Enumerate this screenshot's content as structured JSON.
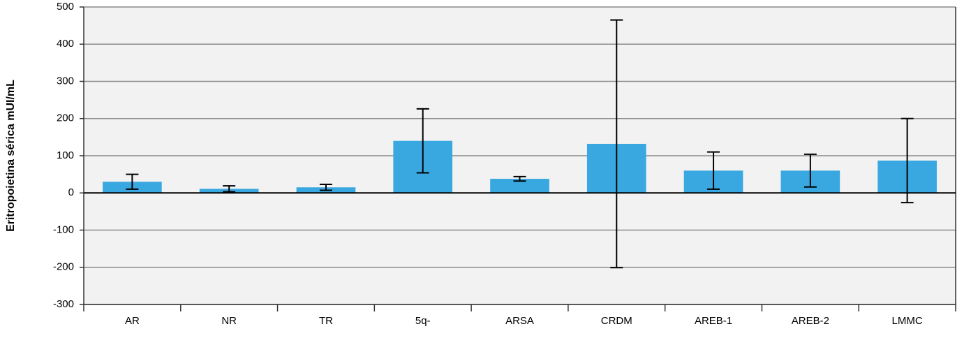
{
  "chart_data": {
    "type": "bar",
    "y_label": "Eritropoietina sérica mUI/mL",
    "categories": [
      "AR",
      "NR",
      "TR",
      "5q-",
      "ARSA",
      "CRDM",
      "AREB-1",
      "AREB-2",
      "LMMC"
    ],
    "values": [
      30,
      11,
      15,
      140,
      38,
      132,
      60,
      60,
      87
    ],
    "errors": [
      20,
      8,
      8,
      86,
      6,
      333,
      50,
      44,
      113
    ],
    "color": "#3aa8e0",
    "ylim": [
      -300,
      500
    ],
    "yticks": [
      -300,
      -200,
      -100,
      0,
      100,
      200,
      300,
      400,
      500
    ],
    "grid": true
  }
}
